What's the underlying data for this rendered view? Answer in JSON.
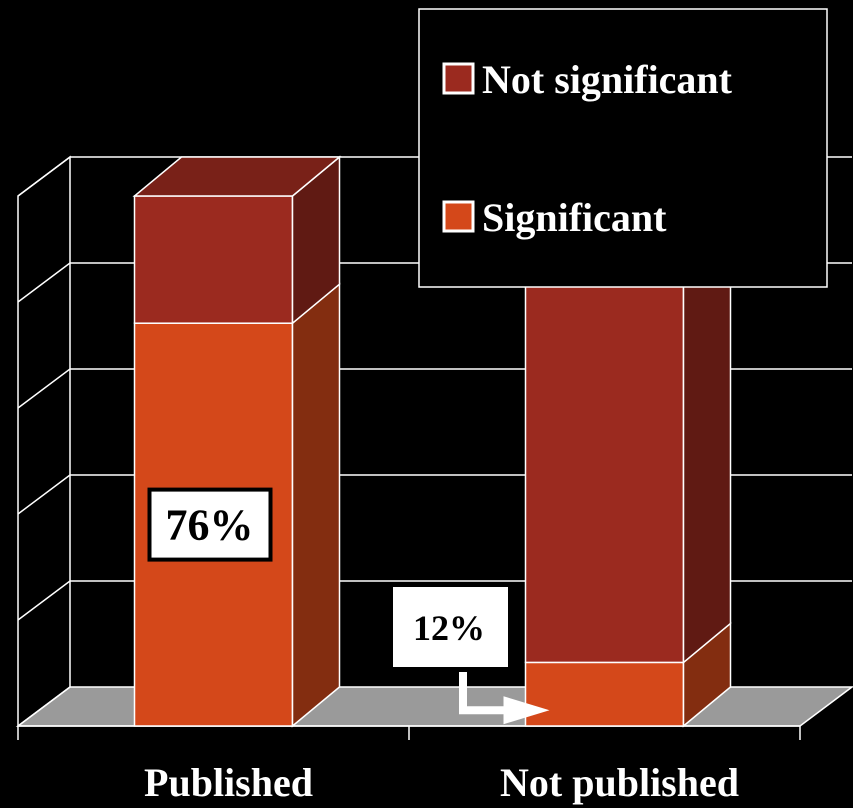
{
  "chart_data": {
    "type": "bar",
    "stacked": true,
    "three_d": true,
    "categories": [
      "Published",
      "Not published"
    ],
    "series": [
      {
        "name": "Significant",
        "values": [
          76,
          12
        ],
        "color": "#d4481a"
      },
      {
        "name": "Not significant",
        "values": [
          24,
          88
        ],
        "color": "#9b2a1f"
      }
    ],
    "ylim": [
      0,
      100
    ],
    "grid": true,
    "legend_position": "top-right",
    "data_labels": [
      {
        "category": "Published",
        "series": "Significant",
        "text": "76%"
      },
      {
        "category": "Not published",
        "series": "Significant",
        "text": "12%"
      }
    ],
    "background": "#000000",
    "floor_color": "#9a9a9a"
  }
}
